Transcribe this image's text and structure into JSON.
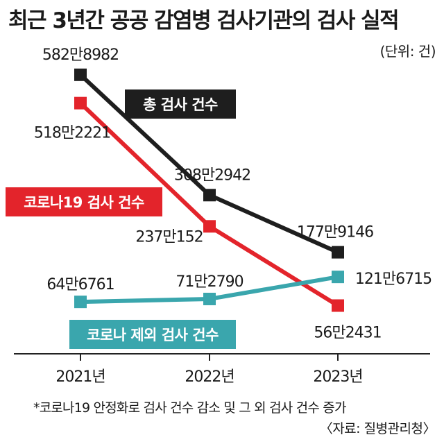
{
  "title": "최근 3년간 공공 감염병 검사기관의 검사 실적",
  "unit": "(단위: 건)",
  "footnote": "*코로나19 안정화로 검사 건수 감소 및 그 외 검사 건수 증가",
  "source": "〈자료: 질병관리청〉",
  "colors": {
    "total": "#1e1e1e",
    "covid": "#e3242b",
    "non_covid": "#3aa6ad",
    "axis": "#222222"
  },
  "chart_data": {
    "type": "line",
    "title": "최근 3년간 공공 감염병 검사기관의 검사 실적",
    "ylabel": "",
    "y_unit": "건",
    "categories": [
      "2021년",
      "2022년",
      "2023년"
    ],
    "ylim": [
      0,
      6000000
    ],
    "grid": false,
    "legend": "inline labels",
    "series": [
      {
        "key": "total",
        "name": "총 검사 건수",
        "values": [
          5828982,
          3082942,
          1779146
        ],
        "labels": [
          "582만8982",
          "308만2942",
          "177만9146"
        ]
      },
      {
        "key": "covid",
        "name": "코로나19 검사 건수",
        "values": [
          5182221,
          2370152,
          562431
        ],
        "labels": [
          "518만2221",
          "237만152",
          "56만2431"
        ]
      },
      {
        "key": "non_covid",
        "name": "코로나 제외 검사 건수",
        "values": [
          646761,
          712790,
          1216715
        ],
        "labels": [
          "64만6761",
          "71만2790",
          "121만6715"
        ]
      }
    ]
  }
}
